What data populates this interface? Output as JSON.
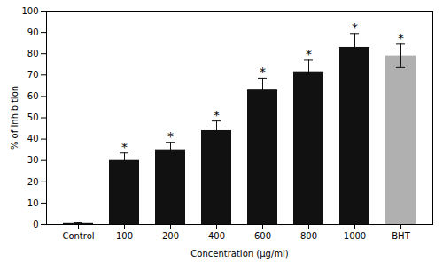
{
  "chart_data": {
    "type": "bar",
    "categories": [
      "Control",
      "100",
      "200",
      "400",
      "600",
      "800",
      "1000",
      "BHT"
    ],
    "values": [
      0.5,
      30.0,
      35.0,
      44.0,
      63.0,
      71.5,
      83.0,
      79.0
    ],
    "errors": [
      0.3,
      3.5,
      3.5,
      4.5,
      5.5,
      5.5,
      6.5,
      5.5
    ],
    "colors": [
      "#111111",
      "#111111",
      "#111111",
      "#111111",
      "#111111",
      "#111111",
      "#111111",
      "#b0b0b0"
    ],
    "annotations": [
      {
        "category": "100",
        "text": "*"
      },
      {
        "category": "200",
        "text": "*"
      },
      {
        "category": "400",
        "text": "*"
      },
      {
        "category": "600",
        "text": "*"
      },
      {
        "category": "800",
        "text": "*"
      },
      {
        "category": "1000",
        "text": "*"
      },
      {
        "category": "BHT",
        "text": "*"
      }
    ],
    "ylabel": "% of Inhibition",
    "xlabel": "Concentration (µg/ml)",
    "ylim": [
      0,
      100
    ],
    "yticks": [
      0,
      10,
      20,
      30,
      40,
      50,
      60,
      70,
      80,
      90,
      100
    ],
    "grid": false
  }
}
